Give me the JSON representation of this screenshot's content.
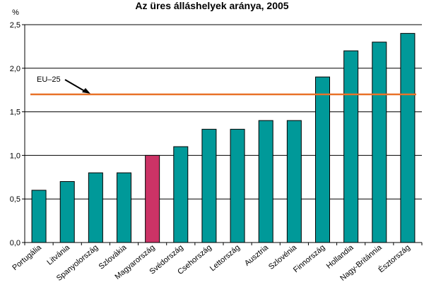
{
  "chart_data": {
    "type": "bar",
    "title": "Az üres álláshelyek aránya, 2005",
    "ylabel": "%",
    "xlabel": "",
    "ylim": [
      0,
      2.5
    ],
    "yticks": [
      "0,0",
      "0,5",
      "1,0",
      "1,5",
      "2,0",
      "2,5"
    ],
    "grid": true,
    "categories": [
      "Portugália",
      "Litvánia",
      "Spanyolország",
      "Szlovákia",
      "Magyarország",
      "Svédország",
      "Csehország",
      "Lettország",
      "Ausztria",
      "Szlovénia",
      "Finnország",
      "Hollandia",
      "Nagy-Británnia",
      "Észtország"
    ],
    "values": [
      0.6,
      0.7,
      0.8,
      0.8,
      1.0,
      1.1,
      1.3,
      1.3,
      1.4,
      1.4,
      1.9,
      2.2,
      2.3,
      2.4
    ],
    "highlight_category": "Magyarország",
    "reference_line": {
      "label": "EU–25",
      "value": 1.7
    },
    "colors": {
      "bar": "#009999",
      "highlight": "#cc3366",
      "reference": "#e8732a",
      "grid": "#000000"
    }
  }
}
